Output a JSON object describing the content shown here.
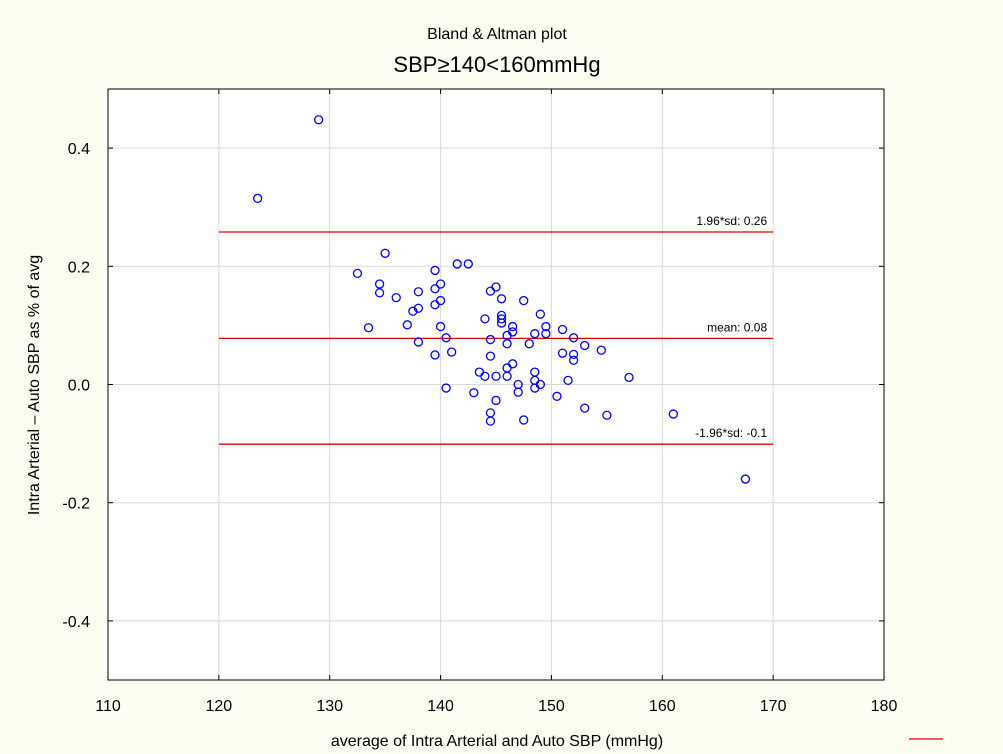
{
  "chart_data": {
    "type": "scatter",
    "title": "Bland & Altman plot",
    "subtitle": "SBP≥140<160mmHg",
    "xlabel": "average of Intra Arterial and Auto SBP (mmHg)",
    "ylabel": "Intra Arterial – Auto SBP as % of avg",
    "xlim": [
      110,
      180
    ],
    "ylim": [
      -0.5,
      0.5
    ],
    "x_ticks": [
      110,
      120,
      130,
      140,
      150,
      160,
      170,
      180
    ],
    "x_tick_labels": [
      "110",
      "120",
      "130",
      "140",
      "150",
      "160",
      "170",
      "180"
    ],
    "y_ticks": [
      -0.4,
      -0.2,
      0.0,
      0.2,
      0.4
    ],
    "y_tick_labels": [
      "-0.4",
      "-0.2",
      "0.0",
      "0.2",
      "0.4"
    ],
    "grid": true,
    "colors": {
      "background": "#fdfdf2",
      "plot_area": "#ffffff",
      "points": "#0000ff",
      "reference_lines": "#e00000",
      "grid": "#d9d9d9"
    },
    "reference_lines": [
      {
        "label": "1.96*sd: 0.26",
        "y": 0.258,
        "x_range": [
          120,
          170
        ]
      },
      {
        "label": "mean: 0.08",
        "y": 0.078,
        "x_range": [
          120,
          170
        ]
      },
      {
        "label": "-1.96*sd: -0.1",
        "y": -0.101,
        "x_range": [
          120,
          170
        ]
      }
    ],
    "points": [
      [
        123.5,
        0.315
      ],
      [
        129,
        0.448
      ],
      [
        132.5,
        0.188
      ],
      [
        133.5,
        0.096
      ],
      [
        134.5,
        0.17
      ],
      [
        134.5,
        0.155
      ],
      [
        135,
        0.222
      ],
      [
        136,
        0.147
      ],
      [
        137,
        0.101
      ],
      [
        137.5,
        0.124
      ],
      [
        138,
        0.129
      ],
      [
        138,
        0.157
      ],
      [
        138,
        0.072
      ],
      [
        139.5,
        0.193
      ],
      [
        139.5,
        0.162
      ],
      [
        139.5,
        0.135
      ],
      [
        139.5,
        0.05
      ],
      [
        140,
        0.17
      ],
      [
        140,
        0.142
      ],
      [
        140,
        0.098
      ],
      [
        140.5,
        0.079
      ],
      [
        140.5,
        -0.006
      ],
      [
        141,
        0.055
      ],
      [
        141.5,
        0.204
      ],
      [
        142.5,
        0.204
      ],
      [
        143,
        -0.014
      ],
      [
        143.5,
        0.021
      ],
      [
        144,
        0.014
      ],
      [
        144,
        0.111
      ],
      [
        144.5,
        0.158
      ],
      [
        144.5,
        0.076
      ],
      [
        144.5,
        0.048
      ],
      [
        144.5,
        -0.048
      ],
      [
        144.5,
        -0.062
      ],
      [
        145,
        0.165
      ],
      [
        145,
        0.014
      ],
      [
        145,
        -0.027
      ],
      [
        145.5,
        0.145
      ],
      [
        145.5,
        0.117
      ],
      [
        145.5,
        0.111
      ],
      [
        145.5,
        0.104
      ],
      [
        146,
        0.083
      ],
      [
        146,
        0.069
      ],
      [
        146,
        0.028
      ],
      [
        146,
        0.014
      ],
      [
        146.5,
        0.098
      ],
      [
        146.5,
        0.089
      ],
      [
        146.5,
        0.035
      ],
      [
        147,
        0.0
      ],
      [
        147,
        -0.013
      ],
      [
        147.5,
        0.142
      ],
      [
        147.5,
        -0.06
      ],
      [
        148,
        0.069
      ],
      [
        148.5,
        0.021
      ],
      [
        148.5,
        0.007
      ],
      [
        148.5,
        -0.006
      ],
      [
        148.5,
        0.086
      ],
      [
        149,
        0.119
      ],
      [
        149,
        0.0
      ],
      [
        149.5,
        0.098
      ],
      [
        149.5,
        0.086
      ],
      [
        150.5,
        -0.02
      ],
      [
        151,
        0.093
      ],
      [
        151,
        0.053
      ],
      [
        151.5,
        0.007
      ],
      [
        152,
        0.079
      ],
      [
        152,
        0.051
      ],
      [
        152,
        0.041
      ],
      [
        153,
        0.066
      ],
      [
        153,
        -0.04
      ],
      [
        154.5,
        0.058
      ],
      [
        155,
        -0.052
      ],
      [
        157,
        0.012
      ],
      [
        161,
        -0.05
      ],
      [
        167.5,
        -0.16
      ]
    ]
  }
}
